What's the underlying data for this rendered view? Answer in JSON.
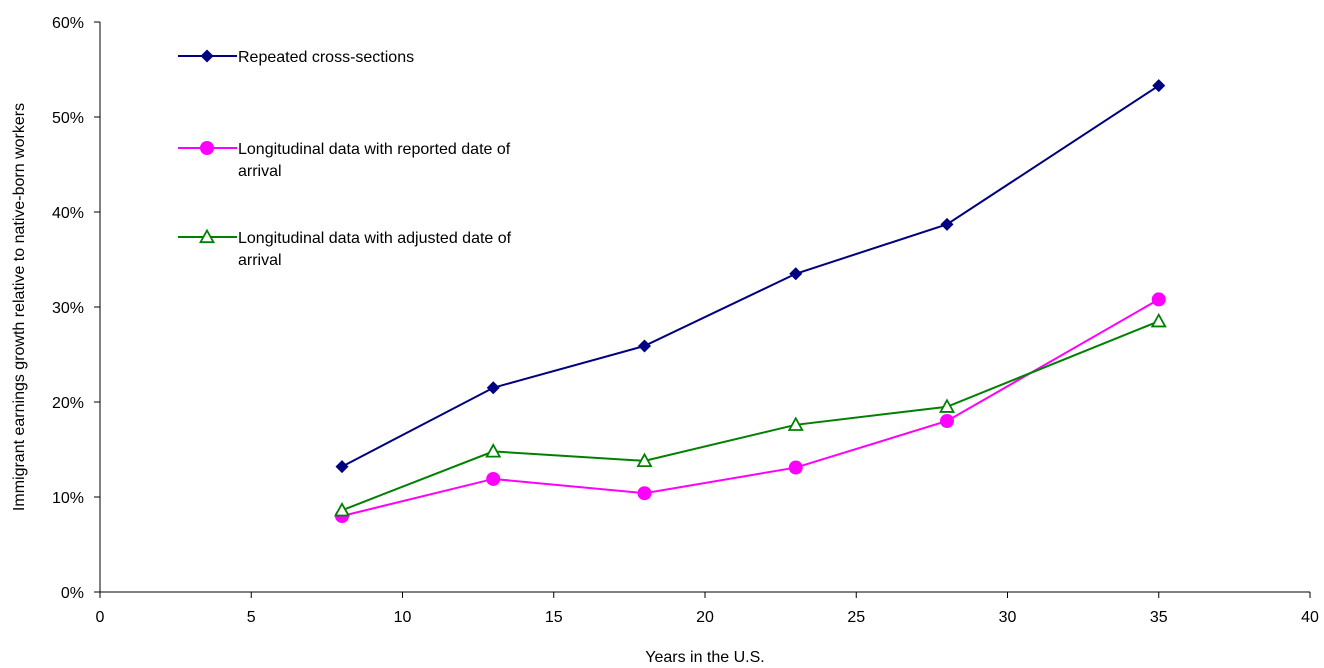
{
  "chart_data": {
    "type": "line",
    "title": "",
    "xlabel": "Years in the U.S.",
    "ylabel": "Immigrant earnings growth relative to native-born workers",
    "xlim": [
      0,
      40
    ],
    "ylim": [
      0,
      0.6
    ],
    "x_ticks": [
      {
        "value": 0,
        "label": "0"
      },
      {
        "value": 5,
        "label": "5"
      },
      {
        "value": 10,
        "label": "10"
      },
      {
        "value": 15,
        "label": "15"
      },
      {
        "value": 20,
        "label": "20"
      },
      {
        "value": 25,
        "label": "25"
      },
      {
        "value": 30,
        "label": "30"
      },
      {
        "value": 35,
        "label": "35"
      },
      {
        "value": 40,
        "label": "40"
      }
    ],
    "y_ticks": [
      {
        "value": 0,
        "label": "0%"
      },
      {
        "value": 0.1,
        "label": "10%"
      },
      {
        "value": 0.2,
        "label": "20%"
      },
      {
        "value": 0.3,
        "label": "30%"
      },
      {
        "value": 0.4,
        "label": "40%"
      },
      {
        "value": 0.5,
        "label": "50%"
      },
      {
        "value": 0.6,
        "label": "60%"
      }
    ],
    "grid": false,
    "legend_position": "top-left",
    "series": [
      {
        "name": "Repeated cross-sections",
        "legend_lines": [
          "Repeated cross-sections"
        ],
        "color": "#000080",
        "marker": "diamond",
        "x": [
          8,
          13,
          18,
          23,
          28,
          35
        ],
        "y": [
          0.132,
          0.215,
          0.259,
          0.335,
          0.387,
          0.533
        ]
      },
      {
        "name": "Longitudinal data with reported date of arrival",
        "legend_lines": [
          "Longitudinal data with reported date of",
          "arrival"
        ],
        "color": "#ff00ff",
        "marker": "circle",
        "x": [
          8,
          13,
          18,
          23,
          28,
          35
        ],
        "y": [
          0.08,
          0.119,
          0.104,
          0.131,
          0.18,
          0.308
        ]
      },
      {
        "name": "Longitudinal data with adjusted date of arrival",
        "legend_lines": [
          "Longitudinal data with adjusted date of",
          "arrival"
        ],
        "color": "#008000",
        "marker": "triangle-open",
        "x": [
          8,
          13,
          18,
          23,
          28,
          35
        ],
        "y": [
          0.086,
          0.148,
          0.138,
          0.176,
          0.195,
          0.285
        ]
      }
    ]
  }
}
